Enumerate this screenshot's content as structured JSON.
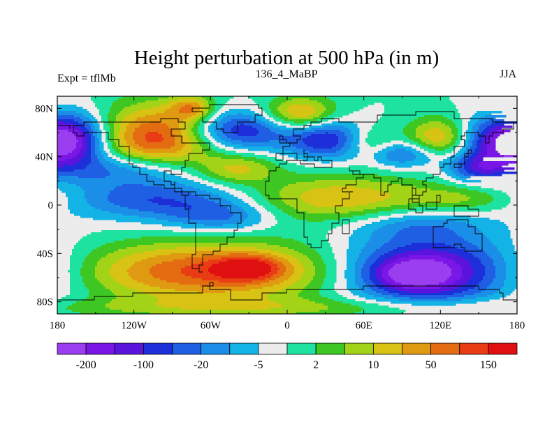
{
  "figure": {
    "title": "Height perturbation at 500 hPa (in m)",
    "left_subtitle": "Expt = tflMb",
    "center_subtitle": "136_4_MaBP",
    "right_subtitle": "JJA"
  },
  "chart_data": {
    "type": "heatmap",
    "title": "Height perturbation at 500 hPa (in m)",
    "xlabel": "",
    "ylabel": "",
    "xlim": [
      -180,
      180
    ],
    "ylim": [
      -90,
      90
    ],
    "x_ticks": [
      {
        "value": -180,
        "label": "180"
      },
      {
        "value": -120,
        "label": "120W"
      },
      {
        "value": -60,
        "label": "60W"
      },
      {
        "value": 0,
        "label": "0"
      },
      {
        "value": 60,
        "label": "60E"
      },
      {
        "value": 120,
        "label": "120E"
      },
      {
        "value": 180,
        "label": "180"
      }
    ],
    "y_ticks": [
      {
        "value": 80,
        "label": "80N"
      },
      {
        "value": 40,
        "label": "40N"
      },
      {
        "value": 0,
        "label": "0"
      },
      {
        "value": -40,
        "label": "40S"
      },
      {
        "value": -80,
        "label": "80S"
      }
    ],
    "colorbar": {
      "colors": [
        "#9a3ef0",
        "#7a17e6",
        "#5a14dc",
        "#1d2fd8",
        "#1f5fe3",
        "#1b8ee8",
        "#14b3e6",
        "#ececec",
        "#1ee3a0",
        "#3ec722",
        "#a3d316",
        "#d8c213",
        "#e09a12",
        "#e46c10",
        "#e93b14",
        "#e01010"
      ],
      "ticks": [
        {
          "boundary": 1,
          "label": "-200"
        },
        {
          "boundary": 3,
          "label": "-100"
        },
        {
          "boundary": 5,
          "label": "-20"
        },
        {
          "boundary": 7,
          "label": "-5"
        },
        {
          "boundary": 9,
          "label": "2"
        },
        {
          "boundary": 11,
          "label": "10"
        },
        {
          "boundary": 13,
          "label": "50"
        },
        {
          "boundary": 15,
          "label": "150"
        }
      ]
    },
    "features": [
      {
        "lon": -100,
        "lat": 55,
        "lw": 32,
        "lh": 20,
        "amp": 3.3
      },
      {
        "lon": -75,
        "lat": 80,
        "lw": 12,
        "lh": 7,
        "amp": 1.8
      },
      {
        "lon": -165,
        "lat": 55,
        "lw": 18,
        "lh": 15,
        "amp": -2.4
      },
      {
        "lon": -40,
        "lat": 62,
        "lw": 30,
        "lh": 12,
        "amp": -2.6
      },
      {
        "lon": -120,
        "lat": 30,
        "lw": 40,
        "lh": 10,
        "amp": -1.8
      },
      {
        "lon": -40,
        "lat": 30,
        "lw": 22,
        "lh": 9,
        "amp": 1.6
      },
      {
        "lon": 10,
        "lat": 75,
        "lw": 20,
        "lh": 10,
        "amp": 2.4
      },
      {
        "lon": 30,
        "lat": 55,
        "lw": 22,
        "lh": 12,
        "amp": -2.4
      },
      {
        "lon": 65,
        "lat": 50,
        "lw": 14,
        "lh": 10,
        "amp": 1.2
      },
      {
        "lon": 120,
        "lat": 55,
        "lw": 18,
        "lh": 12,
        "amp": 2.3
      },
      {
        "lon": 165,
        "lat": 52,
        "lw": 24,
        "lh": 15,
        "amp": -3.0
      },
      {
        "lon": 90,
        "lat": 42,
        "lw": 22,
        "lh": 8,
        "amp": -1.8
      },
      {
        "lon": 150,
        "lat": 30,
        "lw": 18,
        "lh": 8,
        "amp": -1.8
      },
      {
        "lon": 40,
        "lat": 5,
        "lw": 55,
        "lh": 14,
        "amp": 1.9
      },
      {
        "lon": -100,
        "lat": 5,
        "lw": 50,
        "lh": 12,
        "amp": -2.0
      },
      {
        "lon": -50,
        "lat": -10,
        "lw": 30,
        "lh": 9,
        "amp": -1.4
      },
      {
        "lon": 100,
        "lat": -15,
        "lw": 40,
        "lh": 10,
        "amp": -1.2
      },
      {
        "lon": 140,
        "lat": 5,
        "lw": 30,
        "lh": 8,
        "amp": 0.9
      },
      {
        "lon": -60,
        "lat": -55,
        "lw": 75,
        "lh": 17,
        "amp": 3.0
      },
      {
        "lon": -30,
        "lat": -52,
        "lw": 18,
        "lh": 7,
        "amp": 1.8
      },
      {
        "lon": 110,
        "lat": -55,
        "lw": 50,
        "lh": 20,
        "amp": -3.5
      },
      {
        "lon": 95,
        "lat": -57,
        "lw": 20,
        "lh": 9,
        "amp": -1.3
      },
      {
        "lon": 10,
        "lat": -85,
        "lw": 180,
        "lh": 6,
        "amp": 1.0
      }
    ]
  }
}
